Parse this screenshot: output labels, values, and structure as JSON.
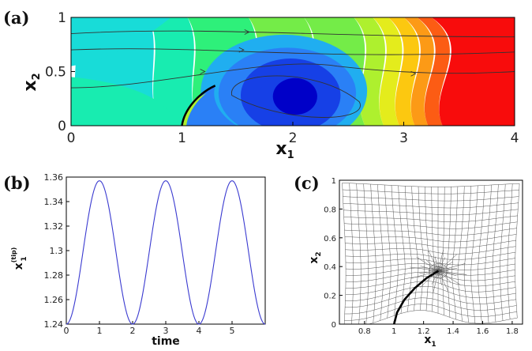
{
  "panels": {
    "a": {
      "label": "(a)"
    },
    "b": {
      "label": "(b)"
    },
    "c": {
      "label": "(c)"
    }
  },
  "chart_data": [
    {
      "id": "a",
      "type": "heatmap",
      "xlabel_main": "x",
      "xlabel_sub": "1",
      "ylabel_main": "x",
      "ylabel_sub": "2",
      "xticks": [
        "0",
        "1",
        "2",
        "3",
        "4"
      ],
      "yticks": [
        "0",
        "0.5",
        "1"
      ],
      "xlim": [
        0,
        4
      ],
      "ylim": [
        0,
        1
      ],
      "colormap": [
        "#0000c8",
        "#1640e6",
        "#2a80f6",
        "#20aef0",
        "#18dcd8",
        "#18ecb0",
        "#2ef07a",
        "#74ec48",
        "#aef02e",
        "#e4ec1c",
        "#fcc810",
        "#fc9a16",
        "#fc5c14",
        "#f80c0c"
      ],
      "filament_x_base": 1.0,
      "filament_tip": [
        1.3,
        0.37
      ],
      "streamlines": 4
    },
    {
      "id": "b",
      "type": "line",
      "xlabel": "time",
      "ylabel_main": "x",
      "ylabel_sup": "(tip)",
      "ylabel_sub": "1",
      "xlim": [
        0,
        6
      ],
      "ylim": [
        1.24,
        1.36
      ],
      "xticks": [
        "0",
        "1",
        "2",
        "3",
        "4",
        "5"
      ],
      "yticks": [
        "1.24",
        "1.26",
        "1.28",
        "1.3",
        "1.32",
        "1.34",
        "1.36"
      ],
      "series": [
        {
          "color": "#3a3ad0",
          "mean": 1.2985,
          "amplitude": 0.0585,
          "period": 2.0,
          "peak_time": 1.0,
          "t_end": 6.0
        }
      ]
    },
    {
      "id": "c",
      "type": "scatter",
      "xlabel_main": "x",
      "xlabel_sub": "1",
      "ylabel_main": "x",
      "ylabel_sub": "2",
      "xlim": [
        0.63,
        1.87
      ],
      "ylim": [
        0,
        1
      ],
      "xticks": [
        "0.8",
        "1",
        "1.2",
        "1.4",
        "1.6",
        "1.8"
      ],
      "yticks": [
        "0",
        "0.2",
        "0.4",
        "0.6",
        "0.8",
        "1"
      ],
      "mesh_focus": [
        1.3,
        0.37
      ],
      "filament": [
        [
          1.0,
          0.0
        ],
        [
          1.02,
          0.08
        ],
        [
          1.07,
          0.17
        ],
        [
          1.14,
          0.25
        ],
        [
          1.22,
          0.32
        ],
        [
          1.3,
          0.37
        ]
      ]
    }
  ]
}
